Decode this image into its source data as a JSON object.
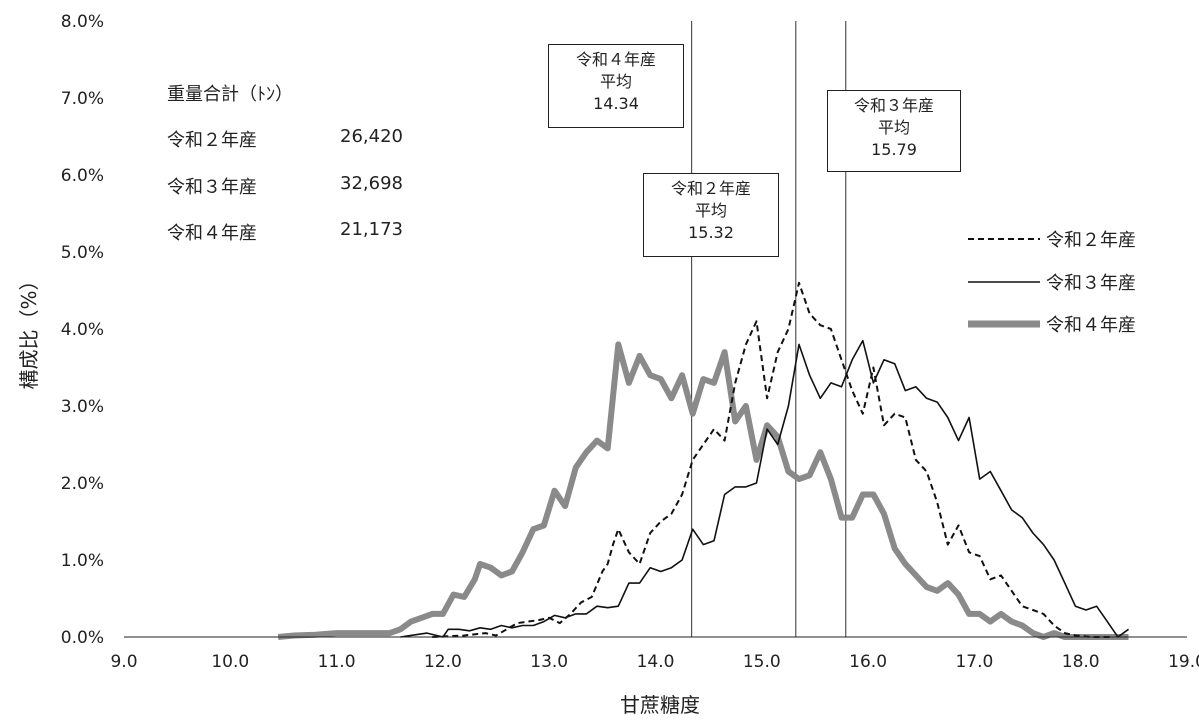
{
  "chart_data": {
    "type": "line",
    "xlabel": "甘蔗糖度",
    "ylabel": "構成比（%）",
    "xlim": [
      9.0,
      19.0
    ],
    "ylim": [
      0.0,
      8.0
    ],
    "x_ticks": [
      "9.0",
      "10.0",
      "11.0",
      "12.0",
      "13.0",
      "14.0",
      "15.0",
      "16.0",
      "17.0",
      "18.0",
      "19.0"
    ],
    "y_ticks": [
      "0.0%",
      "1.0%",
      "2.0%",
      "3.0%",
      "4.0%",
      "5.0%",
      "6.0%",
      "7.0%",
      "8.0%"
    ],
    "series": [
      {
        "name": "令和２年産",
        "style": "dashed",
        "color": "#111111",
        "points": [
          [
            11.9,
            0.0
          ],
          [
            12.2,
            0.02
          ],
          [
            12.4,
            0.05
          ],
          [
            12.5,
            0.02
          ],
          [
            12.6,
            0.1
          ],
          [
            12.7,
            0.18
          ],
          [
            12.8,
            0.2
          ],
          [
            12.9,
            0.22
          ],
          [
            13.0,
            0.25
          ],
          [
            13.1,
            0.18
          ],
          [
            13.2,
            0.3
          ],
          [
            13.3,
            0.45
          ],
          [
            13.4,
            0.52
          ],
          [
            13.5,
            0.85
          ],
          [
            13.55,
            0.95
          ],
          [
            13.6,
            1.2
          ],
          [
            13.65,
            1.4
          ],
          [
            13.75,
            1.1
          ],
          [
            13.85,
            0.95
          ],
          [
            13.95,
            1.35
          ],
          [
            14.05,
            1.5
          ],
          [
            14.15,
            1.6
          ],
          [
            14.25,
            1.85
          ],
          [
            14.35,
            2.3
          ],
          [
            14.45,
            2.5
          ],
          [
            14.55,
            2.7
          ],
          [
            14.65,
            2.55
          ],
          [
            14.75,
            3.3
          ],
          [
            14.85,
            3.8
          ],
          [
            14.95,
            4.1
          ],
          [
            15.05,
            3.1
          ],
          [
            15.15,
            3.7
          ],
          [
            15.25,
            4.0
          ],
          [
            15.35,
            4.6
          ],
          [
            15.45,
            4.2
          ],
          [
            15.55,
            4.05
          ],
          [
            15.65,
            4.0
          ],
          [
            15.75,
            3.6
          ],
          [
            15.85,
            3.2
          ],
          [
            15.95,
            2.9
          ],
          [
            16.05,
            3.5
          ],
          [
            16.15,
            2.75
          ],
          [
            16.25,
            2.9
          ],
          [
            16.35,
            2.85
          ],
          [
            16.45,
            2.3
          ],
          [
            16.55,
            2.15
          ],
          [
            16.65,
            1.75
          ],
          [
            16.75,
            1.2
          ],
          [
            16.85,
            1.45
          ],
          [
            16.95,
            1.1
          ],
          [
            17.05,
            1.05
          ],
          [
            17.15,
            0.75
          ],
          [
            17.25,
            0.8
          ],
          [
            17.35,
            0.6
          ],
          [
            17.45,
            0.4
          ],
          [
            17.55,
            0.35
          ],
          [
            17.65,
            0.3
          ],
          [
            17.75,
            0.15
          ],
          [
            17.85,
            0.05
          ],
          [
            17.95,
            0.02
          ],
          [
            18.1,
            0.0
          ],
          [
            18.3,
            0.0
          ]
        ]
      },
      {
        "name": "令和３年産",
        "style": "solid",
        "color": "#111111",
        "points": [
          [
            11.6,
            0.0
          ],
          [
            11.85,
            0.05
          ],
          [
            12.0,
            0.0
          ],
          [
            12.05,
            0.1
          ],
          [
            12.15,
            0.1
          ],
          [
            12.25,
            0.08
          ],
          [
            12.35,
            0.12
          ],
          [
            12.45,
            0.1
          ],
          [
            12.55,
            0.15
          ],
          [
            12.65,
            0.12
          ],
          [
            12.75,
            0.15
          ],
          [
            12.85,
            0.15
          ],
          [
            12.95,
            0.2
          ],
          [
            13.05,
            0.28
          ],
          [
            13.15,
            0.25
          ],
          [
            13.25,
            0.3
          ],
          [
            13.35,
            0.3
          ],
          [
            13.45,
            0.4
          ],
          [
            13.55,
            0.38
          ],
          [
            13.65,
            0.4
          ],
          [
            13.75,
            0.7
          ],
          [
            13.85,
            0.7
          ],
          [
            13.95,
            0.9
          ],
          [
            14.05,
            0.85
          ],
          [
            14.15,
            0.9
          ],
          [
            14.25,
            1.0
          ],
          [
            14.35,
            1.4
          ],
          [
            14.45,
            1.2
          ],
          [
            14.55,
            1.25
          ],
          [
            14.65,
            1.85
          ],
          [
            14.75,
            1.95
          ],
          [
            14.85,
            1.95
          ],
          [
            14.95,
            2.0
          ],
          [
            15.05,
            2.7
          ],
          [
            15.15,
            2.5
          ],
          [
            15.25,
            3.0
          ],
          [
            15.35,
            3.8
          ],
          [
            15.45,
            3.4
          ],
          [
            15.55,
            3.1
          ],
          [
            15.65,
            3.3
          ],
          [
            15.75,
            3.25
          ],
          [
            15.85,
            3.6
          ],
          [
            15.95,
            3.85
          ],
          [
            16.05,
            3.3
          ],
          [
            16.15,
            3.6
          ],
          [
            16.25,
            3.55
          ],
          [
            16.35,
            3.2
          ],
          [
            16.45,
            3.25
          ],
          [
            16.55,
            3.1
          ],
          [
            16.65,
            3.05
          ],
          [
            16.75,
            2.85
          ],
          [
            16.85,
            2.55
          ],
          [
            16.95,
            2.85
          ],
          [
            17.05,
            2.05
          ],
          [
            17.15,
            2.15
          ],
          [
            17.25,
            1.9
          ],
          [
            17.35,
            1.65
          ],
          [
            17.45,
            1.55
          ],
          [
            17.55,
            1.35
          ],
          [
            17.65,
            1.2
          ],
          [
            17.75,
            1.0
          ],
          [
            17.85,
            0.7
          ],
          [
            17.95,
            0.4
          ],
          [
            18.05,
            0.35
          ],
          [
            18.15,
            0.4
          ],
          [
            18.25,
            0.2
          ],
          [
            18.35,
            0.0
          ],
          [
            18.45,
            0.1
          ]
        ]
      },
      {
        "name": "令和４年産",
        "style": "thick",
        "color": "#8a8a8a",
        "points": [
          [
            10.45,
            0.0
          ],
          [
            10.6,
            0.02
          ],
          [
            10.8,
            0.03
          ],
          [
            11.0,
            0.05
          ],
          [
            11.2,
            0.05
          ],
          [
            11.4,
            0.05
          ],
          [
            11.5,
            0.05
          ],
          [
            11.6,
            0.1
          ],
          [
            11.7,
            0.2
          ],
          [
            11.8,
            0.25
          ],
          [
            11.9,
            0.3
          ],
          [
            12.0,
            0.3
          ],
          [
            12.1,
            0.55
          ],
          [
            12.2,
            0.52
          ],
          [
            12.3,
            0.75
          ],
          [
            12.35,
            0.95
          ],
          [
            12.45,
            0.9
          ],
          [
            12.55,
            0.8
          ],
          [
            12.65,
            0.85
          ],
          [
            12.75,
            1.1
          ],
          [
            12.85,
            1.4
          ],
          [
            12.95,
            1.45
          ],
          [
            13.05,
            1.9
          ],
          [
            13.15,
            1.7
          ],
          [
            13.25,
            2.2
          ],
          [
            13.35,
            2.4
          ],
          [
            13.45,
            2.55
          ],
          [
            13.55,
            2.45
          ],
          [
            13.65,
            3.8
          ],
          [
            13.75,
            3.3
          ],
          [
            13.85,
            3.65
          ],
          [
            13.95,
            3.4
          ],
          [
            14.05,
            3.35
          ],
          [
            14.15,
            3.1
          ],
          [
            14.25,
            3.4
          ],
          [
            14.35,
            2.9
          ],
          [
            14.45,
            3.35
          ],
          [
            14.55,
            3.3
          ],
          [
            14.65,
            3.7
          ],
          [
            14.75,
            2.8
          ],
          [
            14.85,
            3.0
          ],
          [
            14.95,
            2.3
          ],
          [
            15.05,
            2.75
          ],
          [
            15.15,
            2.6
          ],
          [
            15.25,
            2.15
          ],
          [
            15.35,
            2.05
          ],
          [
            15.45,
            2.1
          ],
          [
            15.55,
            2.4
          ],
          [
            15.65,
            2.05
          ],
          [
            15.75,
            1.55
          ],
          [
            15.85,
            1.55
          ],
          [
            15.95,
            1.85
          ],
          [
            16.05,
            1.85
          ],
          [
            16.15,
            1.6
          ],
          [
            16.25,
            1.15
          ],
          [
            16.35,
            0.95
          ],
          [
            16.45,
            0.8
          ],
          [
            16.55,
            0.65
          ],
          [
            16.65,
            0.6
          ],
          [
            16.75,
            0.7
          ],
          [
            16.85,
            0.55
          ],
          [
            16.95,
            0.3
          ],
          [
            17.05,
            0.3
          ],
          [
            17.15,
            0.2
          ],
          [
            17.25,
            0.3
          ],
          [
            17.35,
            0.2
          ],
          [
            17.45,
            0.15
          ],
          [
            17.55,
            0.05
          ],
          [
            17.65,
            0.0
          ],
          [
            17.75,
            0.05
          ],
          [
            17.85,
            0.0
          ],
          [
            18.0,
            0.0
          ],
          [
            18.45,
            0.0
          ]
        ]
      }
    ],
    "reference_lines": [
      {
        "name": "令和４年産平均",
        "x": 14.34
      },
      {
        "name": "令和２年産平均",
        "x": 15.32
      },
      {
        "name": "令和３年産平均",
        "x": 15.79
      }
    ],
    "legend_position": "right"
  },
  "annotations": {
    "r4": {
      "line1": "令和４年産",
      "line2": "平均",
      "value": "14.34"
    },
    "r2": {
      "line1": "令和２年産",
      "line2": "平均",
      "value": "15.32"
    },
    "r3": {
      "line1": "令和３年産",
      "line2": "平均",
      "value": "15.79"
    }
  },
  "weights": {
    "heading": "重量合計（ﾄﾝ）",
    "rows": [
      {
        "label": "令和２年産",
        "value": "26,420"
      },
      {
        "label": "令和３年産",
        "value": "32,698"
      },
      {
        "label": "令和４年産",
        "value": "21,173"
      }
    ]
  },
  "legend": [
    "令和２年産",
    "令和３年産",
    "令和４年産"
  ]
}
